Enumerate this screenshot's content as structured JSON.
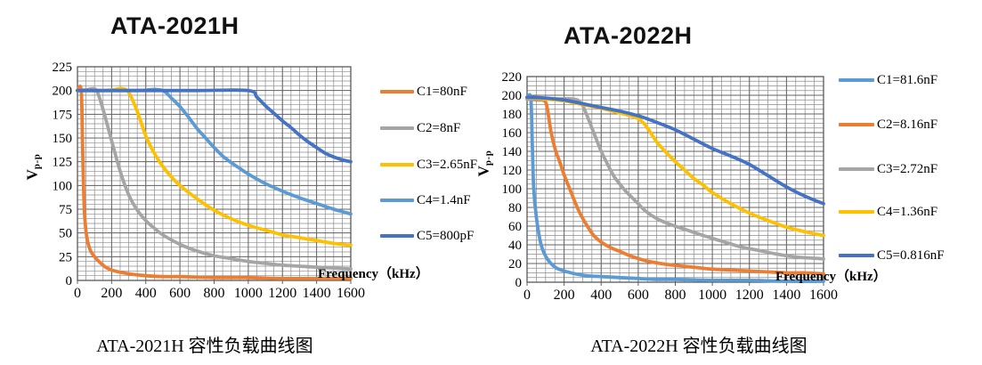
{
  "charts": [
    {
      "title": "ATA-2021H",
      "caption": "ATA-2021H 容性负载曲线图",
      "x_axis_label": "Frequency（kHz）",
      "y_axis_label": {
        "main": "V",
        "sub": "p-p"
      },
      "chart_data": {
        "type": "line",
        "xlabel": "Frequency (kHz)",
        "ylabel": "Vp-p",
        "xlim": [
          0,
          1600
        ],
        "xtick_step": 200,
        "x_minor_step": 50,
        "ylim": [
          0,
          225
        ],
        "ytick_step": 25,
        "y_minor_step": 5,
        "grid": true,
        "legend_position": "right",
        "series": [
          {
            "name": "C1=80nF",
            "color": "#ED7D31",
            "points": [
              [
                0,
                200
              ],
              [
                22,
                200
              ],
              [
                30,
                140
              ],
              [
                40,
                75
              ],
              [
                55,
                45
              ],
              [
                75,
                32
              ],
              [
                100,
                25
              ],
              [
                150,
                16
              ],
              [
                200,
                11
              ],
              [
                300,
                7
              ],
              [
                400,
                5
              ],
              [
                500,
                4
              ],
              [
                600,
                4
              ],
              [
                800,
                3
              ],
              [
                1000,
                3
              ],
              [
                1200,
                2
              ],
              [
                1400,
                2
              ],
              [
                1600,
                2
              ]
            ]
          },
          {
            "name": "C2=8nF",
            "color": "#A5A5A5",
            "points": [
              [
                0,
                200
              ],
              [
                60,
                201
              ],
              [
                90,
                202
              ],
              [
                115,
                199
              ],
              [
                150,
                180
              ],
              [
                200,
                147
              ],
              [
                250,
                115
              ],
              [
                300,
                90
              ],
              [
                350,
                74
              ],
              [
                400,
                63
              ],
              [
                450,
                55
              ],
              [
                500,
                48
              ],
              [
                600,
                38
              ],
              [
                700,
                31
              ],
              [
                800,
                26
              ],
              [
                900,
                23
              ],
              [
                1000,
                20
              ],
              [
                1100,
                18
              ],
              [
                1200,
                16
              ],
              [
                1300,
                15
              ],
              [
                1400,
                14
              ],
              [
                1500,
                13
              ],
              [
                1600,
                12
              ]
            ]
          },
          {
            "name": "C3=2.65nF",
            "color": "#FFC000",
            "points": [
              [
                0,
                200
              ],
              [
                150,
                200
              ],
              [
                220,
                201
              ],
              [
                260,
                202
              ],
              [
                300,
                198
              ],
              [
                350,
                178
              ],
              [
                400,
                152
              ],
              [
                450,
                134
              ],
              [
                500,
                120
              ],
              [
                550,
                109
              ],
              [
                600,
                100
              ],
              [
                700,
                86
              ],
              [
                800,
                74
              ],
              [
                900,
                65
              ],
              [
                1000,
                58
              ],
              [
                1100,
                53
              ],
              [
                1200,
                48
              ],
              [
                1300,
                45
              ],
              [
                1400,
                42
              ],
              [
                1500,
                39
              ],
              [
                1600,
                37
              ]
            ]
          },
          {
            "name": "C4=1.4nF",
            "color": "#5B9BD5",
            "points": [
              [
                0,
                200
              ],
              [
                350,
                200
              ],
              [
                430,
                201
              ],
              [
                470,
                201
              ],
              [
                510,
                199
              ],
              [
                550,
                192
              ],
              [
                600,
                183
              ],
              [
                650,
                172
              ],
              [
                700,
                160
              ],
              [
                750,
                150
              ],
              [
                800,
                140
              ],
              [
                850,
                131
              ],
              [
                900,
                124
              ],
              [
                950,
                118
              ],
              [
                1000,
                112
              ],
              [
                1100,
                102
              ],
              [
                1200,
                94
              ],
              [
                1300,
                87
              ],
              [
                1400,
                81
              ],
              [
                1500,
                75
              ],
              [
                1600,
                70
              ]
            ]
          },
          {
            "name": "C5=800pF",
            "color": "#4472C4",
            "points": [
              [
                0,
                200
              ],
              [
                400,
                200
              ],
              [
                700,
                200
              ],
              [
                1000,
                200
              ],
              [
                1050,
                193
              ],
              [
                1100,
                184
              ],
              [
                1150,
                176
              ],
              [
                1200,
                168
              ],
              [
                1250,
                161
              ],
              [
                1300,
                153
              ],
              [
                1350,
                146
              ],
              [
                1400,
                140
              ],
              [
                1450,
                134
              ],
              [
                1500,
                130
              ],
              [
                1550,
                127
              ],
              [
                1600,
                125
              ]
            ]
          }
        ]
      }
    },
    {
      "title": "ATA-2022H",
      "caption": "ATA-2022H 容性负载曲线图",
      "x_axis_label": "Frequency（kHz）",
      "y_axis_label": {
        "main": "V",
        "sub": "p-p"
      },
      "chart_data": {
        "type": "line",
        "xlabel": "Frequency (kHz)",
        "ylabel": "Vp-p",
        "xlim": [
          0,
          1600
        ],
        "xtick_step": 200,
        "x_minor_step": 50,
        "ylim": [
          0,
          220
        ],
        "ytick_step": 20,
        "y_minor_step": 5,
        "grid": true,
        "legend_position": "right",
        "series": [
          {
            "name": "C1=81.6nF",
            "color": "#5B9BD5",
            "points": [
              [
                0,
                197
              ],
              [
                20,
                197
              ],
              [
                28,
                150
              ],
              [
                36,
                100
              ],
              [
                50,
                70
              ],
              [
                70,
                45
              ],
              [
                90,
                32
              ],
              [
                120,
                22
              ],
              [
                160,
                15
              ],
              [
                200,
                12
              ],
              [
                260,
                9
              ],
              [
                320,
                7
              ],
              [
                400,
                6
              ],
              [
                500,
                5
              ],
              [
                600,
                4
              ],
              [
                700,
                3
              ],
              [
                800,
                3
              ],
              [
                1000,
                2
              ],
              [
                1200,
                2
              ],
              [
                1400,
                1
              ],
              [
                1600,
                1
              ]
            ]
          },
          {
            "name": "C2=8.16nF",
            "color": "#ED7D31",
            "points": [
              [
                0,
                196
              ],
              [
                60,
                195
              ],
              [
                95,
                194
              ],
              [
                110,
                185
              ],
              [
                130,
                160
              ],
              [
                155,
                140
              ],
              [
                178,
                128
              ],
              [
                200,
                115
              ],
              [
                240,
                95
              ],
              [
                280,
                76
              ],
              [
                322,
                61
              ],
              [
                360,
                50
              ],
              [
                400,
                43
              ],
              [
                450,
                37
              ],
              [
                500,
                33
              ],
              [
                560,
                28
              ],
              [
                640,
                23
              ],
              [
                720,
                20
              ],
              [
                800,
                18
              ],
              [
                900,
                16
              ],
              [
                1000,
                14
              ],
              [
                1100,
                13
              ],
              [
                1200,
                12
              ],
              [
                1300,
                11
              ],
              [
                1400,
                10
              ],
              [
                1500,
                10
              ],
              [
                1600,
                9
              ]
            ]
          },
          {
            "name": "C3=2.72nF",
            "color": "#A5A5A5",
            "points": [
              [
                0,
                196
              ],
              [
                150,
                196
              ],
              [
                250,
                196
              ],
              [
                290,
                192
              ],
              [
                320,
                180
              ],
              [
                360,
                160
              ],
              [
                400,
                140
              ],
              [
                430,
                128
              ],
              [
                470,
                113
              ],
              [
                530,
                98
              ],
              [
                580,
                88
              ],
              [
                640,
                76
              ],
              [
                700,
                68
              ],
              [
                770,
                62
              ],
              [
                860,
                56
              ],
              [
                950,
                50
              ],
              [
                1050,
                44
              ],
              [
                1150,
                38
              ],
              [
                1250,
                34
              ],
              [
                1350,
                30
              ],
              [
                1450,
                27
              ],
              [
                1600,
                25
              ]
            ]
          },
          {
            "name": "C4=1.36nF",
            "color": "#FFC000",
            "points": [
              [
                0,
                198
              ],
              [
                100,
                196
              ],
              [
                200,
                194
              ],
              [
                300,
                190
              ],
              [
                400,
                186
              ],
              [
                500,
                181
              ],
              [
                560,
                178
              ],
              [
                600,
                175
              ],
              [
                630,
                170
              ],
              [
                660,
                162
              ],
              [
                700,
                150
              ],
              [
                750,
                139
              ],
              [
                800,
                129
              ],
              [
                850,
                120
              ],
              [
                900,
                111
              ],
              [
                950,
                104
              ],
              [
                1000,
                96
              ],
              [
                1100,
                84
              ],
              [
                1200,
                74
              ],
              [
                1300,
                66
              ],
              [
                1400,
                59
              ],
              [
                1500,
                54
              ],
              [
                1600,
                50
              ]
            ]
          },
          {
            "name": "C5=0.816nF",
            "color": "#4472C4",
            "points": [
              [
                0,
                198
              ],
              [
                100,
                197
              ],
              [
                200,
                195
              ],
              [
                300,
                191
              ],
              [
                400,
                187
              ],
              [
                500,
                183
              ],
              [
                600,
                178
              ],
              [
                700,
                171
              ],
              [
                800,
                163
              ],
              [
                900,
                153
              ],
              [
                1000,
                143
              ],
              [
                1100,
                135
              ],
              [
                1200,
                126
              ],
              [
                1300,
                114
              ],
              [
                1400,
                102
              ],
              [
                1500,
                92
              ],
              [
                1600,
                84
              ]
            ]
          }
        ]
      }
    }
  ],
  "style_colors": {
    "grid_minor": "#8c8c8c",
    "grid_major": "#636363",
    "plot_border": "#595959",
    "text": "#000000"
  }
}
